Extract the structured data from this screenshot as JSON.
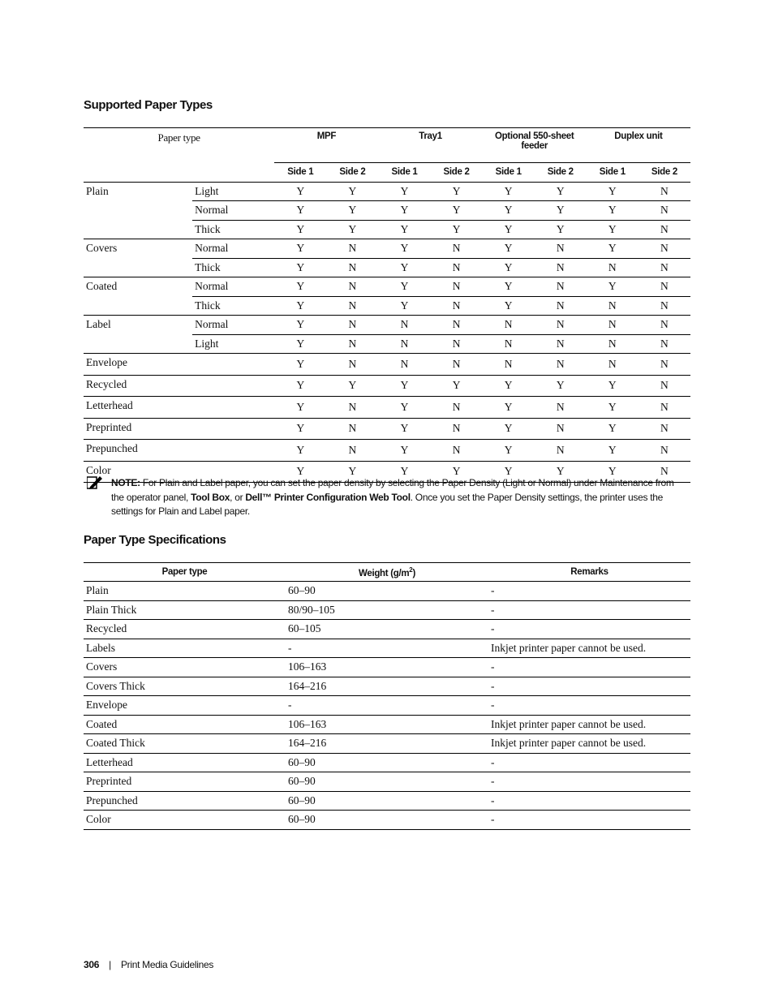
{
  "section1": {
    "title": "Supported Paper Types",
    "header": {
      "paper_type": "Paper type",
      "groups": [
        "MPF",
        "Tray1",
        "Optional 550-sheet feeder",
        "Duplex unit"
      ],
      "sides": [
        "Side 1",
        "Side 2",
        "Side 1",
        "Side 2",
        "Side 1",
        "Side 2",
        "Side 1",
        "Side 2"
      ]
    },
    "groups": [
      {
        "type": "Plain",
        "rows": [
          {
            "sub": "Light",
            "values": [
              "Y",
              "Y",
              "Y",
              "Y",
              "Y",
              "Y",
              "Y",
              "N"
            ]
          },
          {
            "sub": "Normal",
            "values": [
              "Y",
              "Y",
              "Y",
              "Y",
              "Y",
              "Y",
              "Y",
              "N"
            ]
          },
          {
            "sub": "Thick",
            "values": [
              "Y",
              "Y",
              "Y",
              "Y",
              "Y",
              "Y",
              "Y",
              "N"
            ]
          }
        ]
      },
      {
        "type": "Covers",
        "rows": [
          {
            "sub": "Normal",
            "values": [
              "Y",
              "N",
              "Y",
              "N",
              "Y",
              "N",
              "Y",
              "N"
            ]
          },
          {
            "sub": "Thick",
            "values": [
              "Y",
              "N",
              "Y",
              "N",
              "Y",
              "N",
              "N",
              "N"
            ]
          }
        ]
      },
      {
        "type": "Coated",
        "rows": [
          {
            "sub": "Normal",
            "values": [
              "Y",
              "N",
              "Y",
              "N",
              "Y",
              "N",
              "Y",
              "N"
            ]
          },
          {
            "sub": "Thick",
            "values": [
              "Y",
              "N",
              "Y",
              "N",
              "Y",
              "N",
              "N",
              "N"
            ]
          }
        ]
      },
      {
        "type": "Label",
        "rows": [
          {
            "sub": "Normal",
            "values": [
              "Y",
              "N",
              "N",
              "N",
              "N",
              "N",
              "N",
              "N"
            ]
          },
          {
            "sub": "Light",
            "values": [
              "Y",
              "N",
              "N",
              "N",
              "N",
              "N",
              "N",
              "N"
            ]
          }
        ]
      },
      {
        "type": "Envelope",
        "rows": [
          {
            "sub": "",
            "values": [
              "Y",
              "N",
              "N",
              "N",
              "N",
              "N",
              "N",
              "N"
            ]
          }
        ]
      },
      {
        "type": "Recycled",
        "rows": [
          {
            "sub": "",
            "values": [
              "Y",
              "Y",
              "Y",
              "Y",
              "Y",
              "Y",
              "Y",
              "N"
            ]
          }
        ]
      },
      {
        "type": "Letterhead",
        "rows": [
          {
            "sub": "",
            "values": [
              "Y",
              "N",
              "Y",
              "N",
              "Y",
              "N",
              "Y",
              "N"
            ]
          }
        ]
      },
      {
        "type": "Preprinted",
        "rows": [
          {
            "sub": "",
            "values": [
              "Y",
              "N",
              "Y",
              "N",
              "Y",
              "N",
              "Y",
              "N"
            ]
          }
        ]
      },
      {
        "type": "Prepunched",
        "rows": [
          {
            "sub": "",
            "values": [
              "Y",
              "N",
              "Y",
              "N",
              "Y",
              "N",
              "Y",
              "N"
            ]
          }
        ]
      },
      {
        "type": "Color",
        "rows": [
          {
            "sub": "",
            "values": [
              "Y",
              "Y",
              "Y",
              "Y",
              "Y",
              "Y",
              "Y",
              "N"
            ]
          }
        ]
      }
    ]
  },
  "note": {
    "icon": "pencil-note-icon",
    "label": "NOTE:",
    "text1": " For Plain and Label paper, you can set the paper density by selecting the Paper Density (Light or Normal) under Maintenance from the operator panel, ",
    "bold1": "Tool Box",
    "text2": ", or ",
    "bold2": "Dell™ Printer Configuration Web Tool",
    "text3": ". Once you set the Paper Density settings, the printer uses the settings for Plain and Label paper."
  },
  "section2": {
    "title": "Paper Type Specifications",
    "headers": [
      "Paper type",
      "Weight (g/m",
      "2",
      ")",
      "Remarks"
    ],
    "rows": [
      [
        "Plain",
        "60–90",
        "-"
      ],
      [
        "Plain Thick",
        "80/90–105",
        "-"
      ],
      [
        "Recycled",
        "60–105",
        "-"
      ],
      [
        "Labels",
        "-",
        "Inkjet printer paper cannot be used."
      ],
      [
        "Covers",
        "106–163",
        "-"
      ],
      [
        "Covers Thick",
        "164–216",
        "-"
      ],
      [
        "Envelope",
        "-",
        "-"
      ],
      [
        "Coated",
        "106–163",
        "Inkjet printer paper cannot be used."
      ],
      [
        "Coated Thick",
        "164–216",
        "Inkjet printer paper cannot be used."
      ],
      [
        "Letterhead",
        "60–90",
        "-"
      ],
      [
        "Preprinted",
        "60–90",
        "-"
      ],
      [
        "Prepunched",
        "60–90",
        "-"
      ],
      [
        "Color",
        "60–90",
        "-"
      ]
    ]
  },
  "footer": {
    "page_number": "306",
    "separator": "|",
    "chapter": "Print Media Guidelines"
  }
}
